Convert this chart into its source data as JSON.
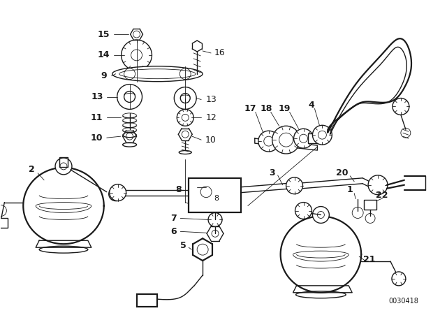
{
  "background_color": "#ffffff",
  "line_color": "#1a1a1a",
  "diagram_label": "0030418",
  "fig_width": 6.4,
  "fig_height": 4.48,
  "dpi": 100
}
